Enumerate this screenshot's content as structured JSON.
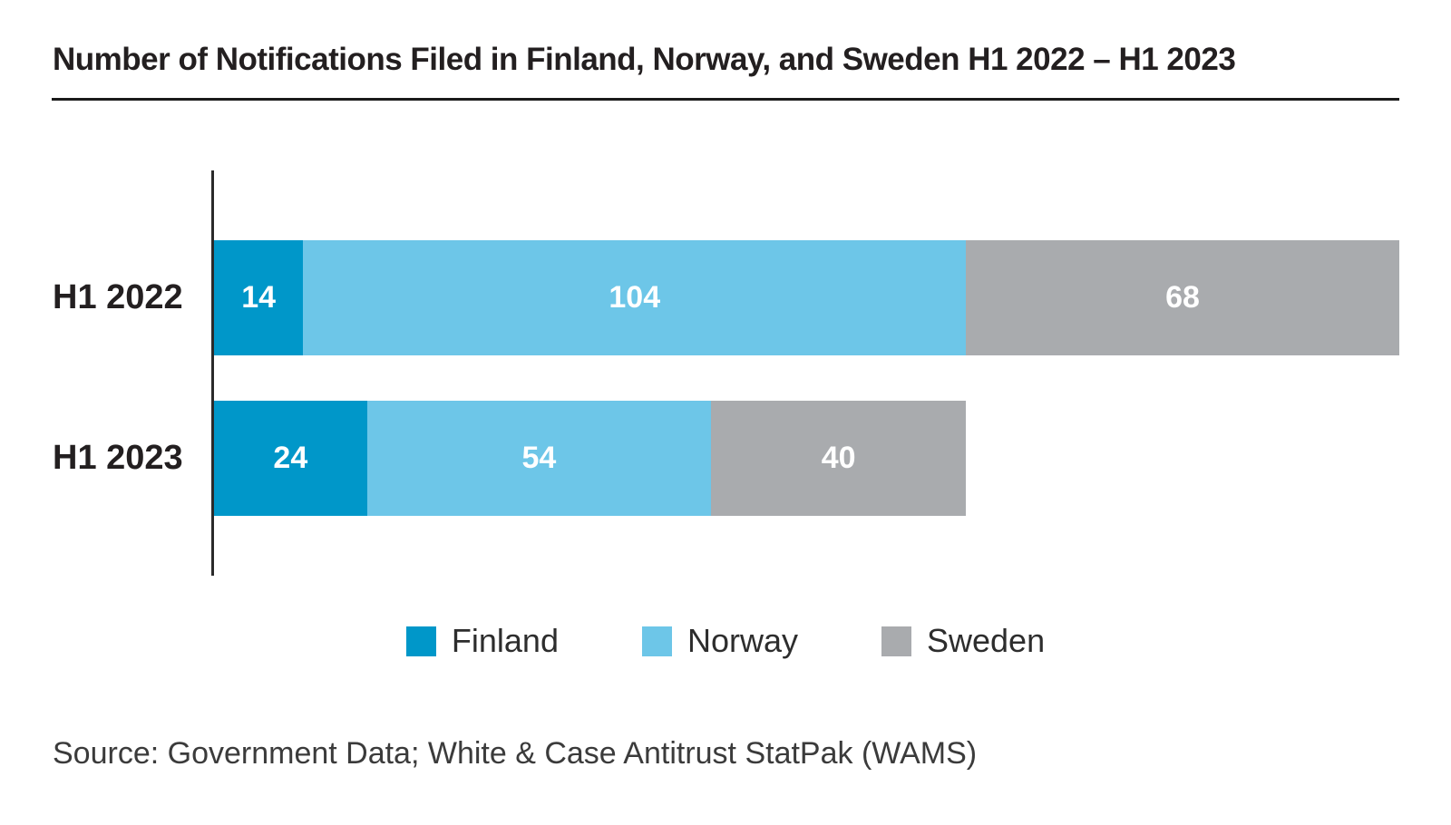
{
  "page": {
    "source": "Source: Government Data; White & Case Antitrust StatPak (WAMS)"
  },
  "colors": {
    "finland": "#0097C9",
    "norway": "#6DC6E8",
    "sweden": "#A9ABAE",
    "axis_line": "#2B2B2B",
    "rule": "#1A1A1A",
    "title_text": "#231F20",
    "label_text": "#231F20",
    "legend_text": "#2D2D2D",
    "source_text": "#3B3B3B",
    "value_text": "#FFFFFF",
    "background": "#FFFFFF"
  },
  "chart_data": {
    "type": "bar",
    "orientation": "horizontal",
    "stacked": true,
    "title": "Number of Notifications Filed in Finland, Norway, and Sweden H1 2022 – H1 2023",
    "categories": [
      "H1 2022",
      "H1 2023"
    ],
    "series": [
      {
        "name": "Finland",
        "color": "#0097C9",
        "values": [
          14,
          24
        ]
      },
      {
        "name": "Norway",
        "color": "#6DC6E8",
        "values": [
          104,
          54
        ]
      },
      {
        "name": "Sweden",
        "color": "#A9ABAE",
        "values": [
          68,
          40
        ]
      }
    ],
    "row_totals": [
      186,
      118
    ],
    "xlim": [
      0,
      186
    ],
    "grid": false,
    "legend_position": "bottom-center",
    "value_labels": "inside, white, bold, centered"
  }
}
